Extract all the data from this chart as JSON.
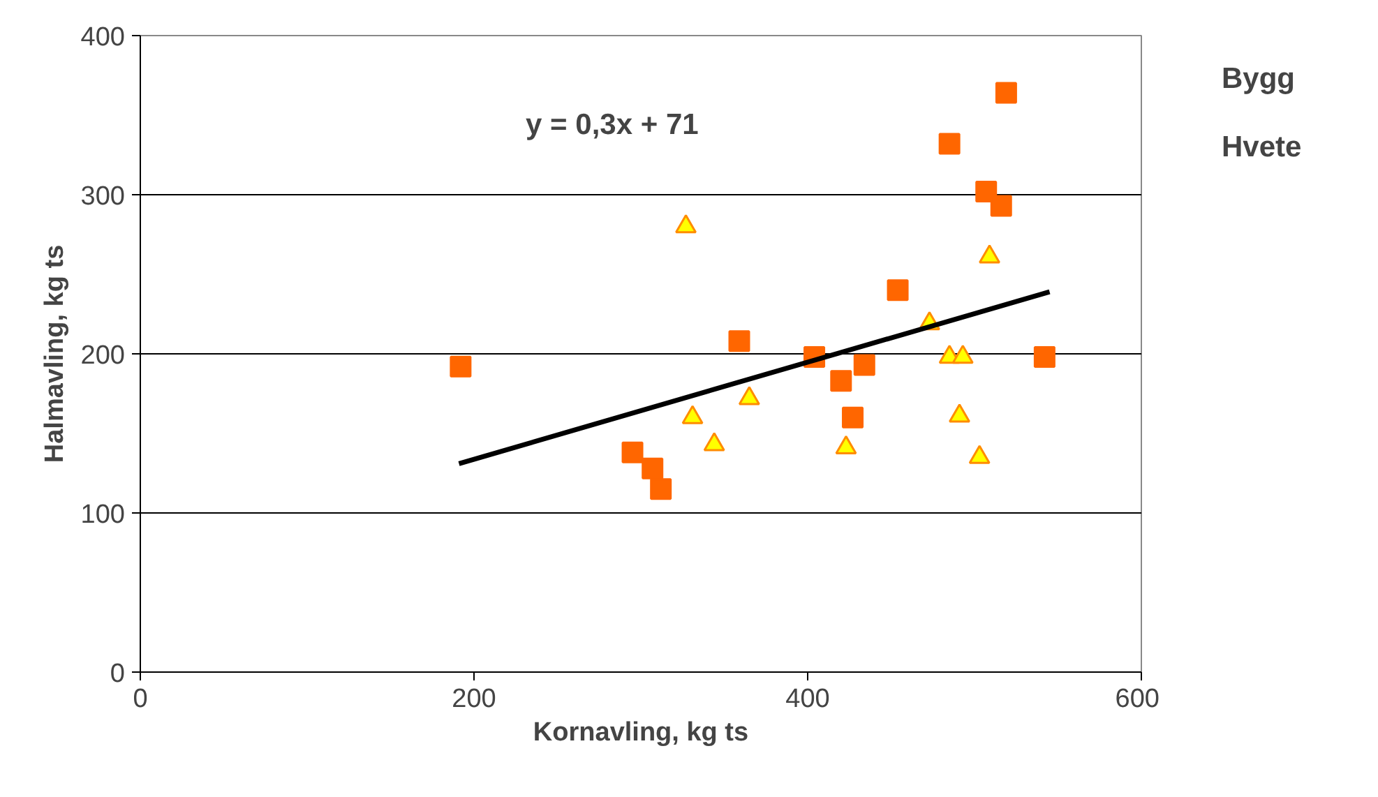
{
  "chart_data": {
    "type": "scatter",
    "xlabel": "Kornavling, kg ts",
    "ylabel": "Halmavling, kg ts",
    "xlim": [
      0,
      600
    ],
    "ylim": [
      0,
      400
    ],
    "xticks": [
      0,
      200,
      400,
      600
    ],
    "yticks": [
      0,
      100,
      200,
      300,
      400
    ],
    "grid": "y",
    "legend": "top right",
    "annotations": [
      "y = 0,3x + 71"
    ],
    "series": [
      {
        "name": "Bygg",
        "color": "#ffff00",
        "marker": "triangle",
        "x": [
          327,
          331,
          344,
          365,
          423,
          473,
          485,
          493,
          491,
          503,
          509
        ],
        "values": [
          280,
          160,
          143,
          172,
          141,
          219,
          198,
          198,
          161,
          135,
          261
        ]
      },
      {
        "name": "Hvete",
        "color": "#ff6600",
        "marker": "square",
        "x": [
          192,
          295,
          307,
          312,
          359,
          404,
          420,
          434,
          427,
          454,
          485,
          507,
          516,
          519,
          542
        ],
        "values": [
          192,
          138,
          128,
          115,
          208,
          198,
          183,
          193,
          160,
          240,
          332,
          302,
          293,
          364,
          198
        ]
      },
      {
        "type": "line",
        "color": "#000000",
        "x": [
          191,
          545
        ],
        "values": [
          131,
          239
        ]
      }
    ]
  }
}
